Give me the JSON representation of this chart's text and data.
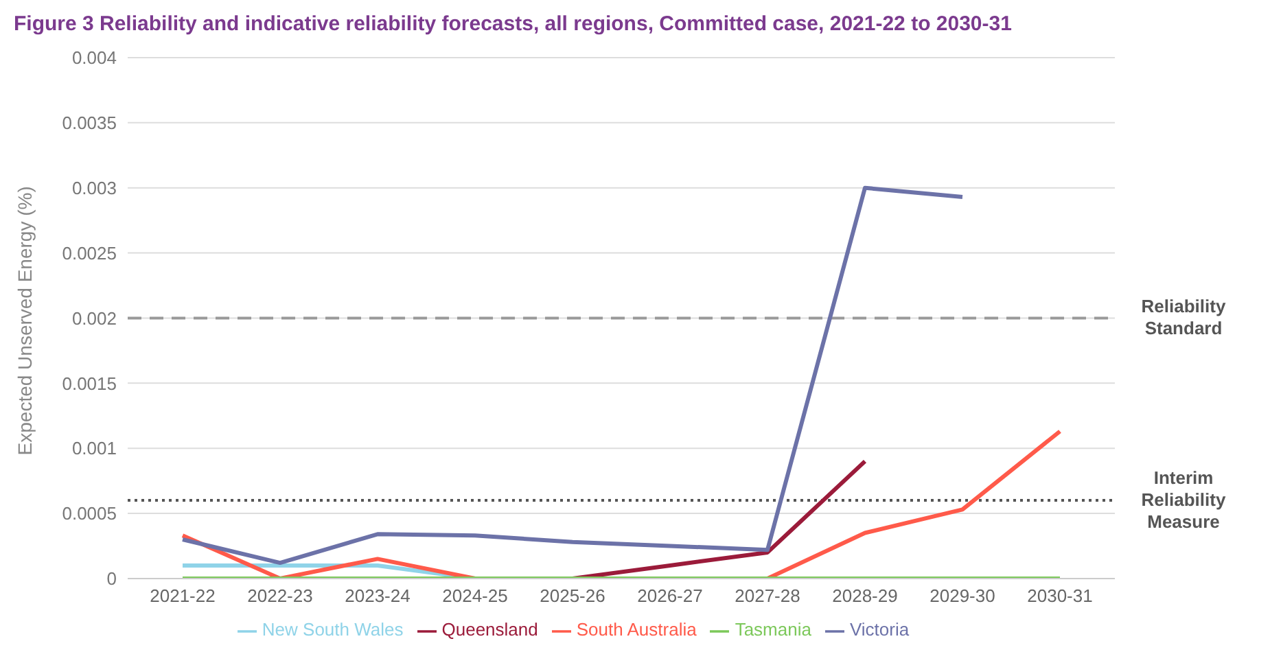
{
  "chart_data": {
    "type": "line",
    "title": "Figure 3   Reliability and indicative reliability forecasts, all regions, Committed case, 2021-22 to 2030-31",
    "ylabel": "Expected Unserved Energy (%)",
    "categories": [
      "2021-22",
      "2022-23",
      "2023-24",
      "2024-25",
      "2025-26",
      "2026-27",
      "2027-28",
      "2028-29",
      "2029-30",
      "2030-31"
    ],
    "series": [
      {
        "name": "New South Wales",
        "color": "#8fd3e8",
        "values": [
          0.0001,
          0.0001,
          0.0001,
          0,
          null,
          null,
          null,
          null,
          null,
          null
        ]
      },
      {
        "name": "Queensland",
        "color": "#9b1b3a",
        "values": [
          null,
          null,
          null,
          null,
          0,
          0.0001,
          0.0002,
          0.0009,
          null,
          null
        ]
      },
      {
        "name": "South Australia",
        "color": "#ff5a4a",
        "values": [
          0.00033,
          0,
          0.00015,
          0,
          0,
          0,
          0,
          0.00035,
          0.00053,
          0.00113
        ]
      },
      {
        "name": "Tasmania",
        "color": "#7cc85a",
        "values": [
          0,
          0,
          0,
          0,
          0,
          0,
          0,
          0,
          0,
          0
        ]
      },
      {
        "name": "Victoria",
        "color": "#6c72a8",
        "values": [
          0.0003,
          0.00012,
          0.00034,
          0.00033,
          0.00028,
          0.00025,
          0.00022,
          0.003,
          0.00293,
          null
        ]
      }
    ],
    "ylim": [
      0,
      0.004
    ],
    "yticks": [
      0,
      0.0005,
      0.001,
      0.0015,
      0.002,
      0.0025,
      0.003,
      0.0035,
      0.004
    ],
    "ref_lines": [
      {
        "axis": "y",
        "value": 0.002,
        "label": "Reliability Standard",
        "color": "#999999",
        "line_style": "dashed"
      },
      {
        "axis": "y",
        "value": 0.0006,
        "label": "Interim Reliability Measure",
        "color": "#555555",
        "line_style": "dotted"
      }
    ],
    "grid": "y",
    "legend": "bottom",
    "marker": "none",
    "line_style": "solid"
  }
}
